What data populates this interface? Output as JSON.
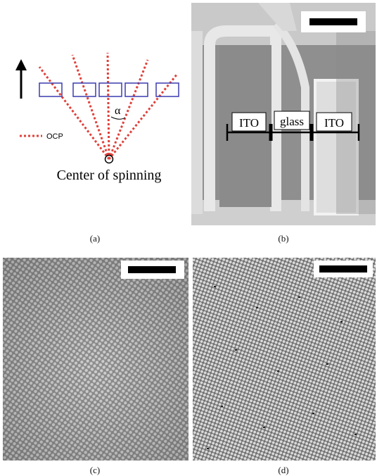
{
  "panel_a": {
    "alpha_label": "α",
    "legend_label": "OCP",
    "center_label": "Center of spinning",
    "caption": "(a)"
  },
  "panel_b": {
    "labels": [
      "ITO",
      "glass",
      "ITO"
    ],
    "caption": "(b)"
  },
  "panel_c": {
    "caption": "(c)"
  },
  "panel_d": {
    "caption": "(d)"
  },
  "colors": {
    "ocp_lines": "#e0403a",
    "substrates": "#3b3bb0",
    "sem_gray": "#9a9a9a"
  }
}
